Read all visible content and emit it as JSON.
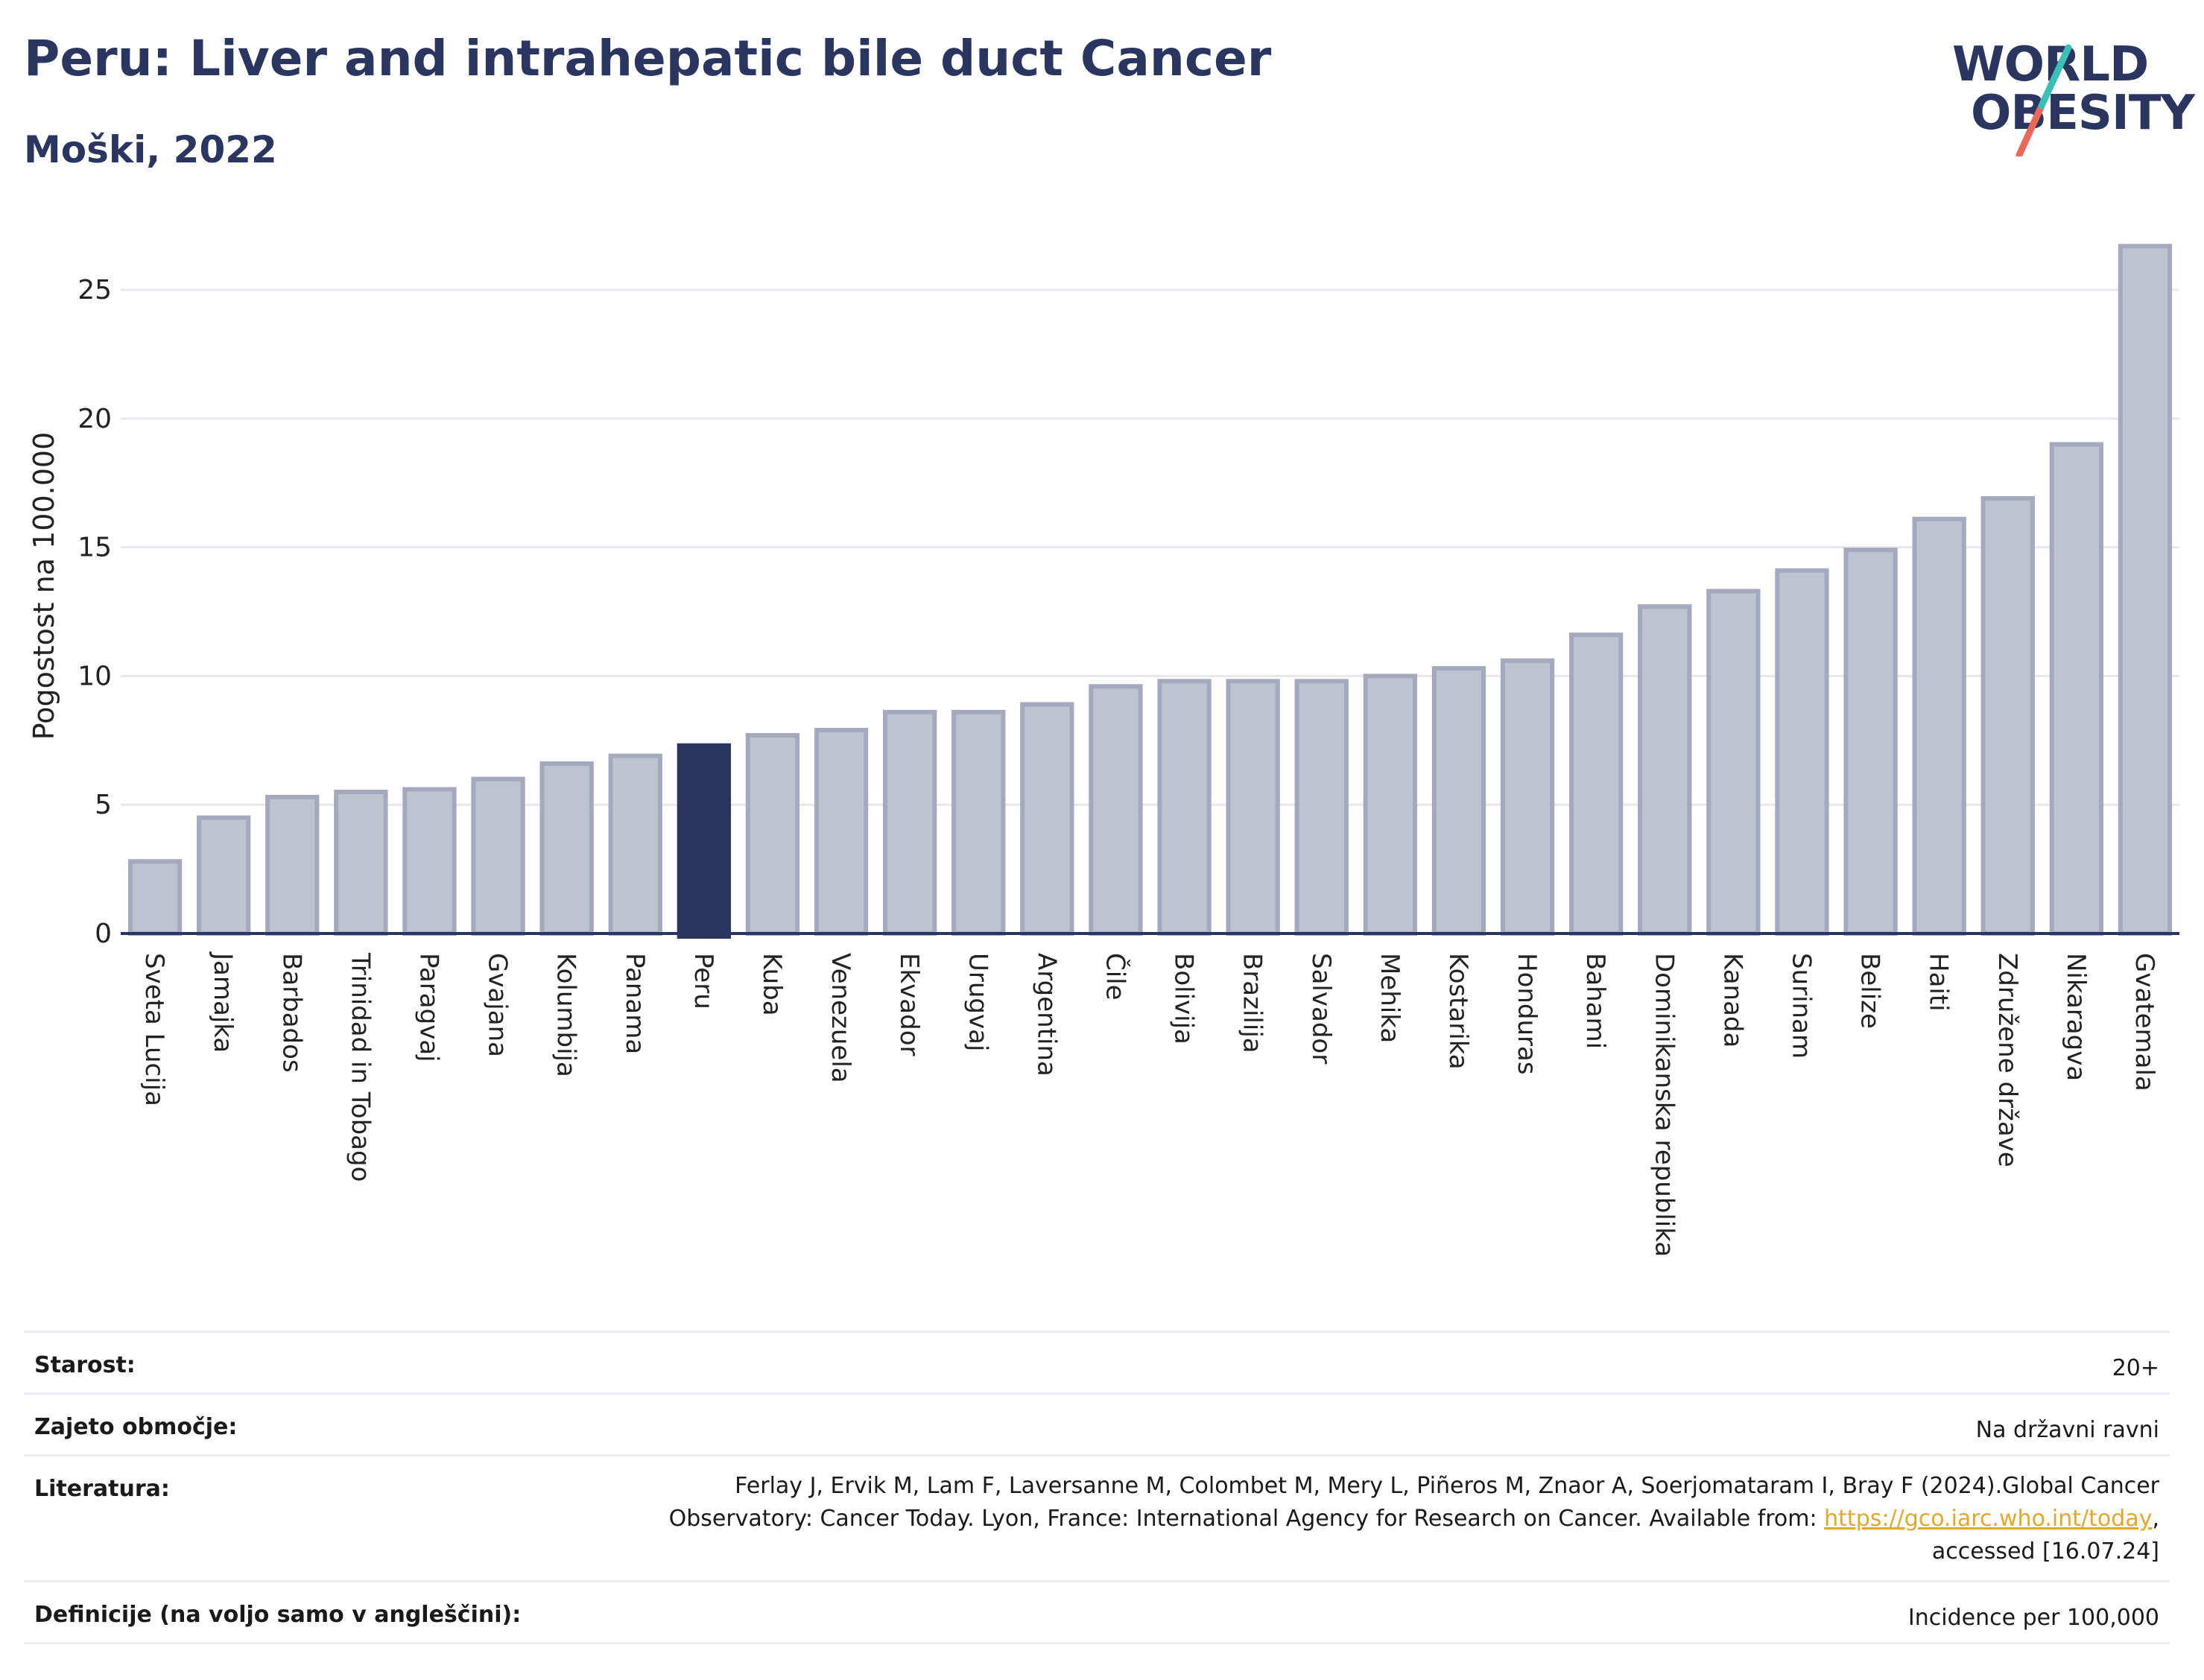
{
  "header": {
    "title": "Peru: Liver and intrahepatic bile duct Cancer",
    "subtitle": "Moški, 2022"
  },
  "logo": {
    "line1": "WORLD",
    "line2": "OBESITY"
  },
  "colors": {
    "bar": "#bfc3d0",
    "bar_stroke": "#a4a9bd",
    "highlight": "#2b3660",
    "grid": "#e6e8ee",
    "title": "#2b3660"
  },
  "chart_data": {
    "type": "bar",
    "title": "Peru: Liver and intrahepatic bile duct Cancer",
    "subtitle": "Moški, 2022",
    "ylabel": "Pogostost na 100.000",
    "ylim": [
      0,
      27
    ],
    "yticks": [
      0,
      5,
      10,
      15,
      20,
      25
    ],
    "highlight": "Peru",
    "categories": [
      "Sveta Lucija",
      "Jamajka",
      "Barbados",
      "Trinidad in Tobago",
      "Paragvaj",
      "Gvajana",
      "Kolumbija",
      "Panama",
      "Peru",
      "Kuba",
      "Venezuela",
      "Ekvador",
      "Urugvaj",
      "Argentina",
      "Čile",
      "Bolivija",
      "Brazilija",
      "Salvador",
      "Mehika",
      "Kostarika",
      "Honduras",
      "Bahami",
      "Dominikanska republika",
      "Kanada",
      "Surinam",
      "Belize",
      "Haiti",
      "Združene države",
      "Nikaragva",
      "Gvatemala"
    ],
    "values": [
      2.8,
      4.5,
      5.3,
      5.5,
      5.6,
      6.0,
      6.6,
      6.9,
      7.3,
      7.7,
      7.9,
      8.6,
      8.6,
      8.9,
      9.6,
      9.8,
      9.8,
      9.8,
      10.0,
      10.3,
      10.6,
      11.6,
      12.7,
      13.3,
      14.1,
      14.9,
      16.1,
      16.9,
      19.0,
      26.7
    ]
  },
  "info": {
    "age_label": "Starost:",
    "age_value": "20+",
    "coverage_label": "Zajeto območje:",
    "coverage_value": "Na državni ravni",
    "literature_label": "Literatura:",
    "literature_line1": "Ferlay J, Ervik M, Lam F, Laversanne M, Colombet M, Mery L, Piñeros M, Znaor A, Soerjomataram I, Bray F (2024).Global Cancer",
    "literature_line2": "Observatory: Cancer Today. Lyon, France: International Agency for Research on Cancer. Available from: ",
    "literature_link": "https://gco.iarc.who.int/today",
    "literature_line2_end": ",",
    "literature_line3": "accessed [16.07.24]",
    "definitions_label": "Definicije (na voljo samo v angleščini):",
    "definitions_value": "Incidence per 100,000"
  }
}
